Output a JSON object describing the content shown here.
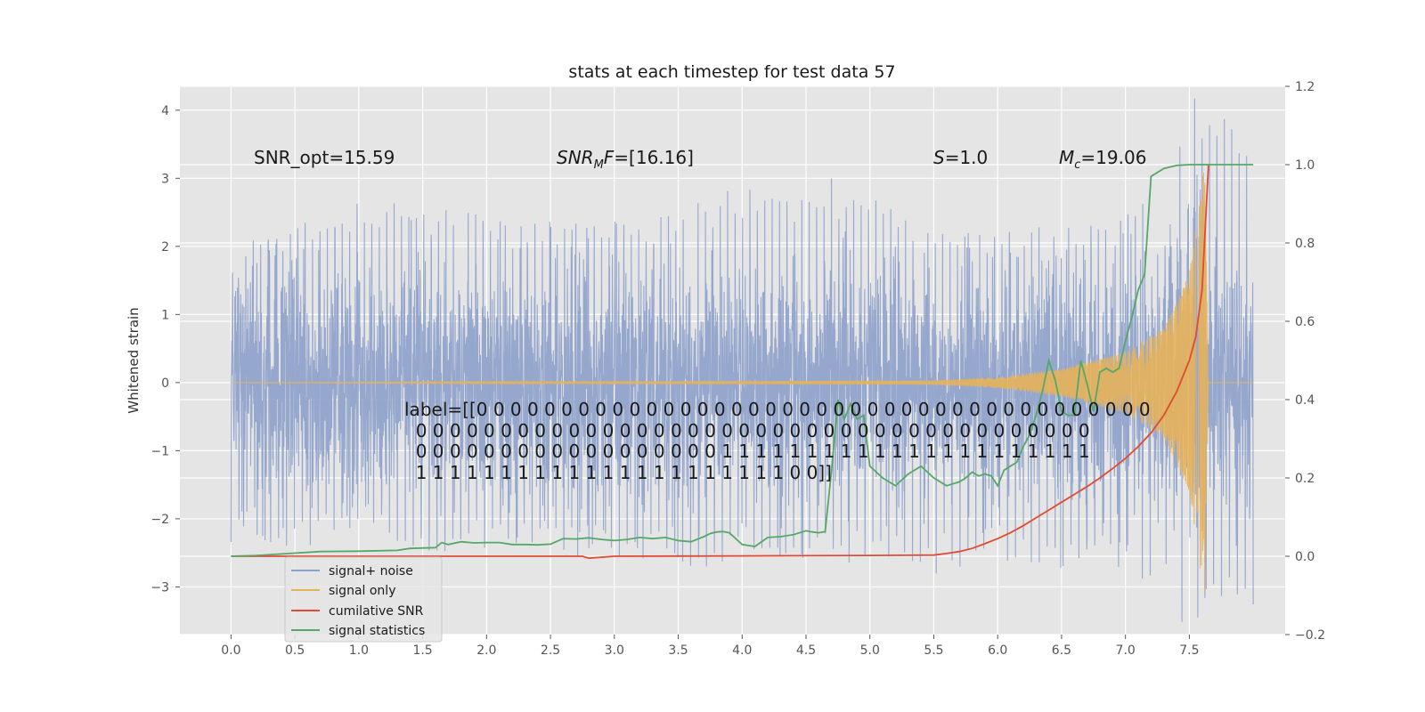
{
  "chart_data": {
    "type": "line",
    "title": "stats at each timestep for test data 57",
    "xlabel": "",
    "ylabel": "Whitened strain",
    "y2label": "",
    "xlim": [
      -0.4,
      8.25
    ],
    "ylim": [
      -3.7,
      4.35
    ],
    "y2lim": [
      -0.2,
      1.2
    ],
    "xticks": [
      "0.0",
      "0.5",
      "1.0",
      "1.5",
      "2.0",
      "2.5",
      "3.0",
      "3.5",
      "4.0",
      "4.5",
      "5.0",
      "5.5",
      "6.0",
      "6.5",
      "7.0",
      "7.5"
    ],
    "yticks": [
      "−3",
      "−2",
      "−1",
      "0",
      "1",
      "2",
      "3",
      "4"
    ],
    "y2ticks": [
      "−0.2",
      "0.0",
      "0.2",
      "0.4",
      "0.6",
      "0.8",
      "1.0",
      "1.2"
    ],
    "grid": true,
    "legend_position": "lower-left",
    "annotations": {
      "snr_opt": "SNR_opt=15.59",
      "snr_mf": "SNR",
      "snr_mf_sub": "M",
      "snr_mf_rest": "F=[16.16]",
      "s_label": "S",
      "s_value": "=1.0",
      "mc_label": "M",
      "mc_sub": "c",
      "mc_value": "=19.06"
    },
    "label_lines": [
      "label=[[0 0 0 0 0 0 0 0 0 0 0 0 0 0 0 0 0 0 0 0 0 0 0 0 0 0 0 0 0 0 0 0 0 0 0 0 0 0 0 0",
      "  0 0 0 0 0 0 0 0 0 0 0 0 0 0 0 0 0 0 0 0 0 0 0 0 0 0 0 0 0 0 0 0 0 0 0 0 0 0 0 0",
      "  0 0 0 0 0 0 0 0 0 0 0 0 0 0 0 0 0 0 1 1 1 1 1 1 1 1 1 1 1 1 1 1 1 1 1 1 1 1 1 1",
      "  1 1 1 1 1 1 1 1 1 1 1 1 1 1 1 1 1 1 1 1 1 1 0 0]]"
    ],
    "series": [
      {
        "name": "signal+ noise",
        "axis": "left",
        "color": "#8da0cb",
        "envelope": {
          "t_start": 0.0,
          "t_end": 8.0,
          "noise_sigma": 0.85,
          "peaks": [
            [
              0.0,
              1.55
            ],
            [
              0.1,
              2.1
            ],
            [
              0.35,
              2.1
            ],
            [
              0.7,
              2.5
            ],
            [
              1.0,
              2.85
            ],
            [
              1.3,
              2.8
            ],
            [
              2.05,
              2.4
            ],
            [
              3.2,
              2.35
            ],
            [
              4.0,
              2.95
            ],
            [
              4.85,
              3.0
            ],
            [
              5.5,
              2.25
            ],
            [
              6.5,
              2.25
            ],
            [
              7.0,
              2.3
            ],
            [
              7.5,
              2.8
            ],
            [
              7.62,
              4.0
            ]
          ],
          "troughs": [
            [
              0.0,
              -2.45
            ],
            [
              0.05,
              -2.05
            ],
            [
              0.5,
              -2.6
            ],
            [
              1.0,
              -2.2
            ],
            [
              1.45,
              -2.5
            ],
            [
              2.05,
              -2.5
            ],
            [
              2.7,
              -2.55
            ],
            [
              3.55,
              -2.8
            ],
            [
              4.2,
              -2.5
            ],
            [
              5.45,
              -2.9
            ],
            [
              5.6,
              -2.7
            ],
            [
              6.0,
              -2.65
            ],
            [
              6.5,
              -2.8
            ],
            [
              7.0,
              -2.5
            ],
            [
              7.62,
              -3.3
            ]
          ]
        }
      },
      {
        "name": "signal only",
        "axis": "left",
        "color": "#e5b35a",
        "chirp": {
          "t_start": 0.0,
          "t_end": 8.0,
          "merger_time": 7.65,
          "amplitude_points": [
            [
              0.0,
              0.0
            ],
            [
              5.5,
              0.03
            ],
            [
              6.0,
              0.08
            ],
            [
              6.5,
              0.2
            ],
            [
              7.0,
              0.45
            ],
            [
              7.3,
              0.8
            ],
            [
              7.5,
              1.6
            ],
            [
              7.62,
              3.2
            ],
            [
              7.65,
              0.0
            ],
            [
              8.0,
              0.0
            ]
          ]
        }
      },
      {
        "name": "cumilative SNR",
        "axis": "right",
        "color": "#e24a33",
        "x": [
          0.0,
          1.0,
          2.0,
          2.75,
          2.8,
          3.0,
          4.0,
          5.0,
          5.5,
          5.6,
          5.7,
          5.8,
          5.9,
          6.0,
          6.1,
          6.2,
          6.3,
          6.4,
          6.5,
          6.6,
          6.7,
          6.8,
          6.9,
          7.0,
          7.1,
          7.2,
          7.3,
          7.4,
          7.5,
          7.55,
          7.6,
          7.65
        ],
        "y": [
          0.0,
          0.0,
          0.0,
          0.0,
          -0.005,
          0.0,
          0.001,
          0.002,
          0.003,
          0.007,
          0.012,
          0.02,
          0.032,
          0.045,
          0.06,
          0.078,
          0.098,
          0.118,
          0.138,
          0.158,
          0.178,
          0.2,
          0.224,
          0.25,
          0.28,
          0.315,
          0.36,
          0.42,
          0.5,
          0.56,
          0.68,
          1.0
        ]
      },
      {
        "name": "signal statistics",
        "axis": "right",
        "color": "#55a868",
        "x": [
          0.0,
          0.2,
          0.5,
          0.7,
          1.0,
          1.3,
          1.4,
          1.6,
          1.65,
          1.7,
          1.8,
          1.9,
          2.0,
          2.1,
          2.2,
          2.3,
          2.4,
          2.5,
          2.6,
          2.7,
          2.8,
          2.9,
          3.0,
          3.1,
          3.2,
          3.3,
          3.4,
          3.5,
          3.6,
          3.7,
          3.75,
          3.8,
          3.85,
          3.9,
          4.0,
          4.1,
          4.2,
          4.3,
          4.4,
          4.5,
          4.55,
          4.6,
          4.65,
          4.7,
          4.75,
          4.8,
          4.85,
          4.9,
          4.95,
          5.0,
          5.1,
          5.2,
          5.3,
          5.4,
          5.5,
          5.6,
          5.7,
          5.75,
          5.8,
          5.85,
          5.9,
          5.95,
          6.0,
          6.05,
          6.1,
          6.15,
          6.2,
          6.25,
          6.3,
          6.35,
          6.4,
          6.45,
          6.5,
          6.55,
          6.6,
          6.65,
          6.7,
          6.75,
          6.8,
          6.85,
          6.9,
          6.95,
          7.0,
          7.05,
          7.1,
          7.15,
          7.2,
          7.3,
          7.4,
          7.5,
          7.6,
          7.7,
          7.8,
          7.9,
          8.0
        ],
        "y": [
          0.0,
          0.002,
          0.008,
          0.012,
          0.013,
          0.015,
          0.02,
          0.022,
          0.035,
          0.03,
          0.037,
          0.034,
          0.035,
          0.035,
          0.03,
          0.03,
          0.029,
          0.031,
          0.045,
          0.044,
          0.047,
          0.043,
          0.04,
          0.043,
          0.048,
          0.045,
          0.048,
          0.04,
          0.037,
          0.05,
          0.058,
          0.062,
          0.063,
          0.06,
          0.03,
          0.025,
          0.048,
          0.05,
          0.055,
          0.065,
          0.062,
          0.06,
          0.063,
          0.22,
          0.4,
          0.35,
          0.39,
          0.35,
          0.36,
          0.23,
          0.2,
          0.18,
          0.21,
          0.23,
          0.2,
          0.18,
          0.19,
          0.2,
          0.215,
          0.205,
          0.21,
          0.205,
          0.18,
          0.22,
          0.23,
          0.24,
          0.28,
          0.31,
          0.36,
          0.42,
          0.5,
          0.45,
          0.37,
          0.36,
          0.36,
          0.5,
          0.44,
          0.37,
          0.47,
          0.48,
          0.47,
          0.48,
          0.55,
          0.61,
          0.68,
          0.72,
          0.97,
          0.99,
          0.998,
          1.0,
          1.0,
          1.0,
          1.0,
          1.0,
          1.0
        ]
      }
    ]
  }
}
